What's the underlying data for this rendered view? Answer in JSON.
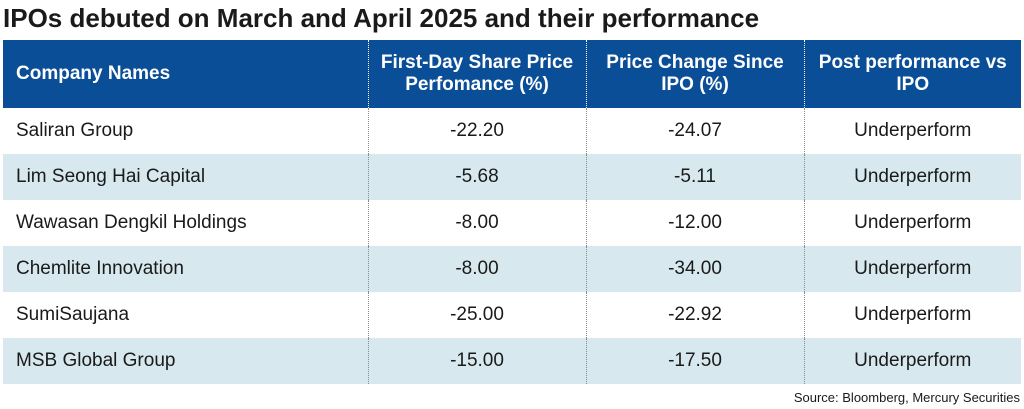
{
  "title": "IPOs debuted on March and April 2025 and their performance",
  "table": {
    "headers": [
      "Company Names",
      "First-Day Share Price Perfomance (%)",
      "Price Change Since IPO (%)",
      "Post performance vs IPO"
    ],
    "rows": [
      {
        "company": "Saliran Group",
        "first_day": "-22.20",
        "since_ipo": "-24.07",
        "post": "Underperform"
      },
      {
        "company": "Lim Seong Hai Capital",
        "first_day": "-5.68",
        "since_ipo": "-5.11",
        "post": "Underperform"
      },
      {
        "company": "Wawasan Dengkil Holdings",
        "first_day": "-8.00",
        "since_ipo": "-12.00",
        "post": "Underperform"
      },
      {
        "company": "Chemlite Innovation",
        "first_day": "-8.00",
        "since_ipo": "-34.00",
        "post": "Underperform"
      },
      {
        "company": "SumiSaujana",
        "first_day": "-25.00",
        "since_ipo": "-22.92",
        "post": "Underperform"
      },
      {
        "company": "MSB Global Group",
        "first_day": "-15.00",
        "since_ipo": "-17.50",
        "post": "Underperform"
      }
    ]
  },
  "source": "Source: Bloomberg, Mercury Securities",
  "colors": {
    "header_bg": "#0b4e98",
    "header_text": "#ffffff",
    "alt_row_bg": "#d7e9ee"
  }
}
